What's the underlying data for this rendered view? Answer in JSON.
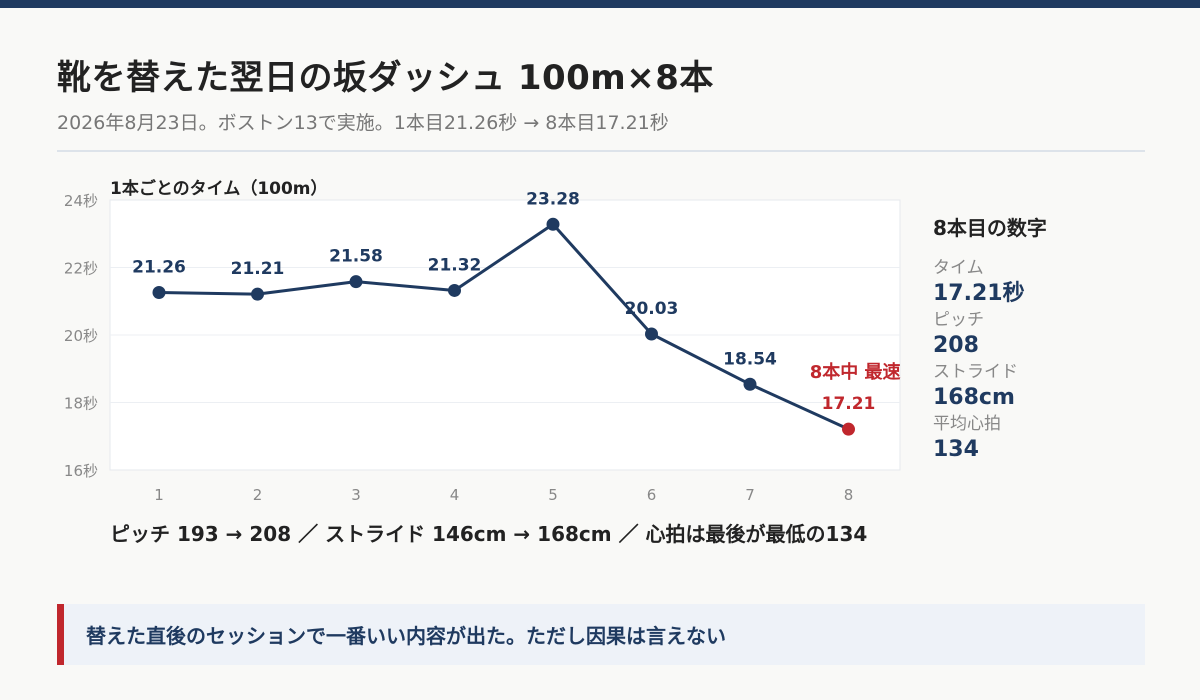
{
  "header": {
    "title": "靴を替えた翌日の坂ダッシュ 100m×8本",
    "subtitle": "2026年8月23日。ボストン13で実施。1本目21.26秒 → 8本目17.21秒"
  },
  "chart_data": {
    "type": "line",
    "title": "1本ごとのタイム（100m）",
    "x": [
      1,
      2,
      3,
      4,
      5,
      6,
      7,
      8
    ],
    "series": [
      {
        "values": [
          21.26,
          21.21,
          21.58,
          21.32,
          23.28,
          20.03,
          18.54,
          17.21
        ]
      }
    ],
    "value_labels": [
      "21.26",
      "21.21",
      "21.58",
      "21.32",
      "23.28",
      "20.03",
      "18.54",
      "17.21"
    ],
    "ylim": [
      16,
      24
    ],
    "yticks": [
      16,
      18,
      20,
      22,
      24
    ],
    "ytick_labels": [
      "16秒",
      "18秒",
      "20秒",
      "22秒",
      "24秒"
    ],
    "xtick_labels": [
      "1",
      "2",
      "3",
      "4",
      "5",
      "6",
      "7",
      "8"
    ],
    "grid": true,
    "highlight": {
      "index": 7,
      "label": "8本中 最速",
      "color": "#c0272d"
    },
    "line_color": "#1f3a60"
  },
  "side_panel": {
    "heading": "8本目の数字",
    "stats": [
      {
        "label": "タイム",
        "value": "17.21秒"
      },
      {
        "label": "ピッチ",
        "value": "208"
      },
      {
        "label": "ストライド",
        "value": "168cm"
      },
      {
        "label": "平均心拍",
        "value": "134"
      }
    ]
  },
  "footnote": "ピッチ 193 → 208 ／ ストライド 146cm → 168cm ／ 心拍は最後が最低の134",
  "callout": "替えた直後のセッションで一番いい内容が出た。ただし因果は言えない",
  "colors": {
    "accent": "#1f3a60",
    "highlight": "#c0272d"
  }
}
